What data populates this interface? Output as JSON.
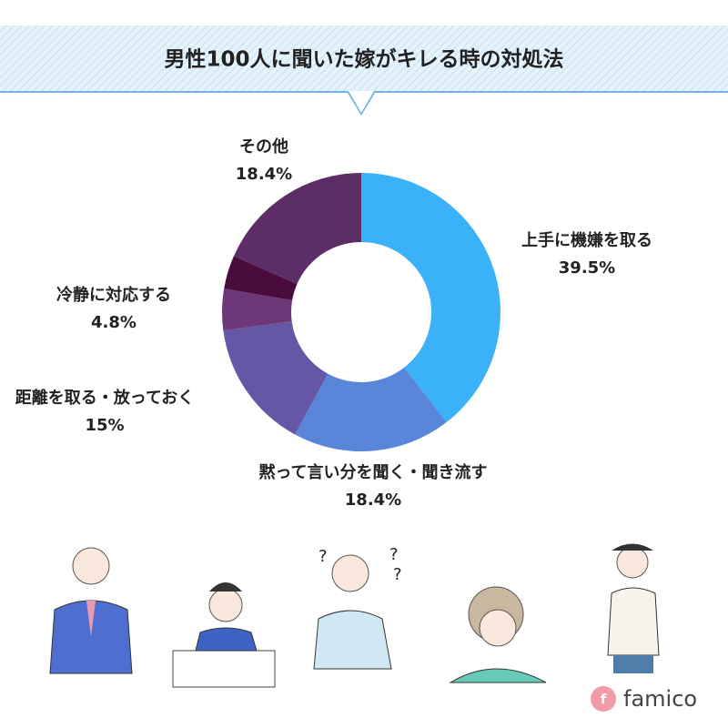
{
  "chart_data": {
    "type": "donut",
    "title": "男性100人に聞いた嫁がキレる時の対処法",
    "categories": [
      "上手に機嫌を取る",
      "黙って言い分を聞く・聞き流す",
      "距離を取る・放っておく",
      "冷静に対応する",
      null,
      "その他"
    ],
    "values": [
      39.5,
      18.4,
      15,
      4.8,
      3.9,
      18.4
    ],
    "value_labels": [
      "39.5%",
      "18.4%",
      "15%",
      "4.8%",
      null,
      "18.4%"
    ],
    "colors": [
      "#3bb2f8",
      "#5a86da",
      "#6657a6",
      "#6c3878",
      "#4a0c3c",
      "#5d2e66"
    ]
  },
  "logo": {
    "mark": "f",
    "name": "famico"
  }
}
